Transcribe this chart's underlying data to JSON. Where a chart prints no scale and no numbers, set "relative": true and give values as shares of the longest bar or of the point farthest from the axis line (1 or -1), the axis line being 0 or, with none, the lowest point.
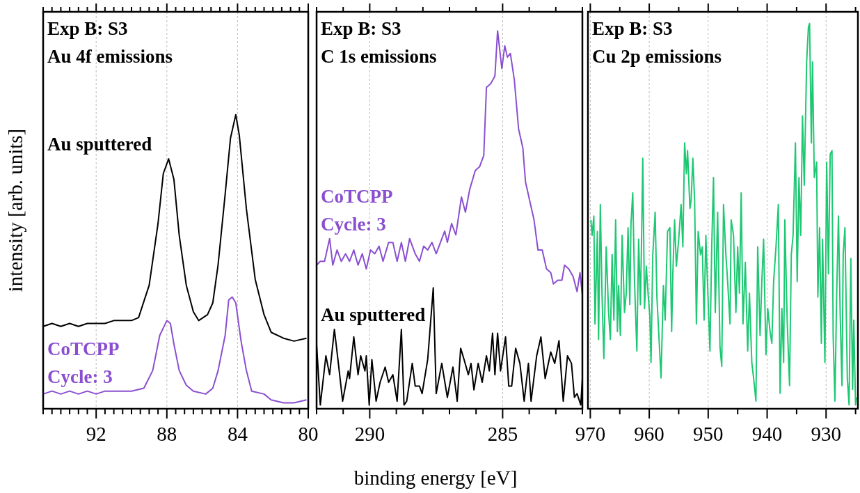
{
  "chart_data": [
    {
      "type": "line",
      "title": "Exp B: S3",
      "subtitle": "Au 4f emissions",
      "ylabel": "intensity [arb. units]",
      "relative": true,
      "grid": "x",
      "xlim": [
        95,
        80
      ],
      "xticks": [
        {
          "value": 95,
          "label": null
        },
        {
          "value": 94.5,
          "label": null
        },
        {
          "value": 94,
          "label": null
        },
        {
          "value": 93.5,
          "label": null
        },
        {
          "value": 93,
          "label": null
        },
        {
          "value": 92.5,
          "label": null
        },
        92,
        {
          "value": 91.5,
          "label": null
        },
        {
          "value": 91,
          "label": null
        },
        {
          "value": 90.5,
          "label": null
        },
        {
          "value": 90,
          "label": null
        },
        {
          "value": 89.5,
          "label": null
        },
        {
          "value": 89,
          "label": null
        },
        {
          "value": 88.5,
          "label": null
        },
        88,
        {
          "value": 87.5,
          "label": null
        },
        {
          "value": 87,
          "label": null
        },
        {
          "value": 86.5,
          "label": null
        },
        {
          "value": 86,
          "label": null
        },
        {
          "value": 85.5,
          "label": null
        },
        {
          "value": 85,
          "label": null
        },
        {
          "value": 84.5,
          "label": null
        },
        84,
        {
          "value": 83.5,
          "label": null
        },
        {
          "value": 83,
          "label": null
        },
        {
          "value": 82.5,
          "label": null
        },
        {
          "value": 82,
          "label": null
        },
        {
          "value": 81.5,
          "label": null
        },
        {
          "value": 81,
          "label": null
        },
        {
          "value": 80.5,
          "label": null
        },
        80
      ],
      "series": [
        {
          "name": "Au sputtered",
          "color": "#000000",
          "x": [
            95,
            94.5,
            94,
            93.5,
            93,
            92.5,
            92,
            91.5,
            91,
            90.5,
            90,
            89.6,
            89.0,
            88.5,
            88.2,
            87.9,
            87.6,
            87.3,
            86.9,
            86.5,
            86.2,
            85.7,
            85.4,
            85.1,
            84.7,
            84.4,
            84.1,
            83.9,
            83.5,
            83.0,
            82.5,
            82.1,
            81.4,
            80.8,
            80.1
          ],
          "values": [
            0.28,
            0.29,
            0.28,
            0.29,
            0.28,
            0.29,
            0.29,
            0.29,
            0.3,
            0.3,
            0.3,
            0.31,
            0.42,
            0.63,
            0.8,
            0.85,
            0.78,
            0.59,
            0.42,
            0.33,
            0.3,
            0.32,
            0.36,
            0.49,
            0.73,
            0.92,
            1.0,
            0.93,
            0.68,
            0.44,
            0.32,
            0.26,
            0.24,
            0.23,
            0.24
          ]
        },
        {
          "name": "CoTCPP\nCycle: 3",
          "color": "#8a4fd0",
          "x": [
            95,
            94.5,
            94,
            93.5,
            93,
            92.5,
            92,
            91.5,
            91,
            90.5,
            90,
            89.3,
            88.8,
            88.4,
            88.0,
            87.8,
            87.6,
            87.3,
            86.9,
            86.5,
            85.8,
            85.4,
            85.1,
            84.7,
            84.5,
            84.3,
            84.1,
            83.8,
            83.5,
            83.2,
            82.5,
            82.1,
            81.4,
            80.8,
            80.1
          ],
          "values": [
            0.05,
            0.06,
            0.05,
            0.06,
            0.05,
            0.06,
            0.05,
            0.06,
            0.06,
            0.06,
            0.06,
            0.07,
            0.13,
            0.25,
            0.3,
            0.29,
            0.22,
            0.13,
            0.08,
            0.06,
            0.05,
            0.07,
            0.13,
            0.25,
            0.37,
            0.38,
            0.36,
            0.23,
            0.13,
            0.06,
            0.05,
            0.03,
            0.02,
            0.02,
            0.03
          ]
        }
      ]
    },
    {
      "type": "line",
      "title": "Exp B: S3",
      "subtitle": "C 1s emissions",
      "xlabel": "binding energy [eV]",
      "relative": true,
      "grid": "x",
      "xlim": [
        292,
        282
      ],
      "xticks": [
        {
          "value": 292,
          "label": null
        },
        {
          "value": 291,
          "label": null
        },
        290,
        {
          "value": 289,
          "label": null
        },
        {
          "value": 288,
          "label": null
        },
        {
          "value": 287,
          "label": null
        },
        {
          "value": 286,
          "label": null
        },
        285,
        {
          "value": 284,
          "label": null
        },
        {
          "value": 283,
          "label": null
        },
        {
          "value": 282,
          "label": null
        }
      ],
      "series": [
        {
          "name": "CoTCPP\nCycle: 3",
          "color": "#8a4fd0",
          "x": [
            292.0,
            291.86,
            291.7,
            291.51,
            291.39,
            291.23,
            291.07,
            290.91,
            290.76,
            290.6,
            290.44,
            290.28,
            290.13,
            289.97,
            289.81,
            289.65,
            289.5,
            289.29,
            289.13,
            288.97,
            288.81,
            288.66,
            288.5,
            288.29,
            288.13,
            287.97,
            287.82,
            287.66,
            287.5,
            287.34,
            287.18,
            287.08,
            286.92,
            286.76,
            286.55,
            286.4,
            286.24,
            286.03,
            285.87,
            285.71,
            285.61,
            285.45,
            285.29,
            285.19,
            285.03,
            284.92,
            284.82,
            284.71,
            284.56,
            284.4,
            284.24,
            284.14,
            283.98,
            283.82,
            283.67,
            283.51,
            283.35,
            283.19,
            283.09,
            282.93,
            282.77,
            282.67,
            282.51,
            282.35,
            282.2,
            282.09,
            282.0
          ],
          "values": [
            0.38,
            0.39,
            0.39,
            0.45,
            0.38,
            0.42,
            0.39,
            0.41,
            0.39,
            0.42,
            0.38,
            0.41,
            0.37,
            0.42,
            0.41,
            0.43,
            0.39,
            0.44,
            0.44,
            0.39,
            0.44,
            0.39,
            0.45,
            0.41,
            0.39,
            0.43,
            0.42,
            0.44,
            0.41,
            0.44,
            0.47,
            0.44,
            0.49,
            0.46,
            0.56,
            0.52,
            0.58,
            0.63,
            0.64,
            0.67,
            0.85,
            0.86,
            0.88,
            1.0,
            0.9,
            0.96,
            0.93,
            0.94,
            0.87,
            0.74,
            0.69,
            0.6,
            0.55,
            0.5,
            0.42,
            0.42,
            0.37,
            0.36,
            0.33,
            0.34,
            0.34,
            0.38,
            0.37,
            0.35,
            0.31,
            0.36,
            0.3
          ]
        },
        {
          "name": "Au sputtered",
          "color": "#000000",
          "x": [
            292.0,
            291.86,
            291.65,
            291.51,
            291.33,
            291.18,
            291.02,
            290.81,
            290.76,
            290.6,
            290.44,
            290.34,
            290.18,
            290.13,
            290.02,
            289.92,
            289.76,
            289.61,
            289.42,
            289.29,
            289.13,
            288.97,
            288.81,
            288.71,
            288.61,
            288.4,
            288.29,
            288.13,
            288.03,
            287.82,
            287.61,
            287.5,
            287.29,
            287.08,
            286.87,
            286.71,
            286.58,
            286.45,
            286.29,
            286.19,
            286.08,
            285.92,
            285.77,
            285.61,
            285.5,
            285.38,
            285.29,
            285.19,
            285.08,
            284.89,
            284.77,
            284.66,
            284.51,
            284.35,
            284.19,
            284.03,
            283.93,
            283.72,
            283.56,
            283.4,
            283.19,
            283.04,
            282.88,
            282.72,
            282.56,
            282.41,
            282.3,
            282.2,
            282.06,
            282.0
          ],
          "values": [
            0.17,
            0.01,
            0.14,
            0.09,
            0.21,
            0.12,
            0.02,
            0.1,
            0.08,
            0.19,
            0.09,
            0.14,
            0.1,
            0.14,
            0.01,
            0.13,
            0.02,
            0.07,
            0.11,
            0.07,
            0.09,
            0.02,
            0.21,
            0.01,
            0.02,
            0.12,
            0.06,
            0.06,
            0.04,
            0.13,
            0.32,
            0.04,
            0.12,
            0.03,
            0.11,
            0.02,
            0.16,
            0.13,
            0.09,
            0.12,
            0.05,
            0.12,
            0.07,
            0.14,
            0.1,
            0.2,
            0.09,
            0.2,
            0.1,
            0.19,
            0.06,
            0.06,
            0.16,
            0.12,
            0.02,
            0.12,
            0.02,
            0.14,
            0.19,
            0.08,
            0.15,
            0.12,
            0.18,
            0.02,
            0.14,
            0.12,
            0.03,
            0.04,
            0.01,
            0.08
          ]
        }
      ]
    },
    {
      "type": "line",
      "title": "Exp B: S3",
      "subtitle": "Cu 2p emissions",
      "relative": true,
      "grid": "x",
      "xlim": [
        970.4,
        924.6
      ],
      "xticks": [
        970,
        {
          "value": 965,
          "label": null
        },
        960,
        {
          "value": 955,
          "label": null
        },
        950,
        {
          "value": 945,
          "label": null
        },
        940,
        {
          "value": 935,
          "label": null
        },
        930,
        {
          "value": 925,
          "label": null
        }
      ],
      "series": [
        {
          "color": "#1ec873",
          "x": [
            969.9,
            969.7,
            969.4,
            969.2,
            968.8,
            968.6,
            968.3,
            968.0,
            967.7,
            967.3,
            966.9,
            966.6,
            966.3,
            966.0,
            965.7,
            965.4,
            965.2,
            964.9,
            964.6,
            964.2,
            963.9,
            963.6,
            963.3,
            963.1,
            962.8,
            962.5,
            962.1,
            961.8,
            961.5,
            961.3,
            961.1,
            960.8,
            960.5,
            960.2,
            959.9,
            959.7,
            959.4,
            959.0,
            958.7,
            958.3,
            958.0,
            957.6,
            957.3,
            956.9,
            956.5,
            956.2,
            956.0,
            955.7,
            955.4,
            955.0,
            954.6,
            954.3,
            954.0,
            953.7,
            953.5,
            953.1,
            952.9,
            952.6,
            952.3,
            952.0,
            951.7,
            951.3,
            951.0,
            950.7,
            950.4,
            950.1,
            949.7,
            949.4,
            949.1,
            948.8,
            948.4,
            948.0,
            947.7,
            947.4,
            947.0,
            946.7,
            946.3,
            946.1,
            945.7,
            945.3,
            945.0,
            944.7,
            944.4,
            944.1,
            943.7,
            943.3,
            943.0,
            942.6,
            942.3,
            941.9,
            941.6,
            941.2,
            940.9,
            940.6,
            940.2,
            939.9,
            939.5,
            939.2,
            938.9,
            938.5,
            938.1,
            937.8,
            937.5,
            937.2,
            937.0,
            936.6,
            936.2,
            935.9,
            935.6,
            935.2,
            934.9,
            934.6,
            934.3,
            934.0,
            933.7,
            933.3,
            933.0,
            932.8,
            932.5,
            932.3,
            932.0,
            931.6,
            931.4,
            931.1,
            930.8,
            930.6,
            930.2,
            929.9,
            929.6,
            929.3,
            929.0,
            928.8,
            928.5,
            928.2,
            927.9,
            927.6,
            927.3,
            927.1,
            926.8,
            926.4,
            926.1,
            925.8,
            925.5,
            925.3,
            925.0,
            924.8
          ],
          "values": [
            0.49,
            0.45,
            0.5,
            0.22,
            0.46,
            0.18,
            0.53,
            0.29,
            0.13,
            0.42,
            0.25,
            0.18,
            0.4,
            0.23,
            0.49,
            0.2,
            0.32,
            0.19,
            0.45,
            0.25,
            0.3,
            0.47,
            0.27,
            0.48,
            0.56,
            0.33,
            0.15,
            0.44,
            0.27,
            0.44,
            0.65,
            0.26,
            0.37,
            0.3,
            0.24,
            0.12,
            0.4,
            0.51,
            0.29,
            0.17,
            0.08,
            0.32,
            0.23,
            0.46,
            0.47,
            0.2,
            0.35,
            0.49,
            0.37,
            0.44,
            0.53,
            0.42,
            0.69,
            0.61,
            0.67,
            0.52,
            0.54,
            0.65,
            0.54,
            0.22,
            0.46,
            0.4,
            0.42,
            0.23,
            0.45,
            0.32,
            0.15,
            0.42,
            0.6,
            0.25,
            0.51,
            0.16,
            0.11,
            0.53,
            0.4,
            0.33,
            0.22,
            0.49,
            0.45,
            0.25,
            0.42,
            0.3,
            0.56,
            0.22,
            0.38,
            0.15,
            0.3,
            0.12,
            0.08,
            0.02,
            0.42,
            0.19,
            0.33,
            0.44,
            0.14,
            0.26,
            0.2,
            0.17,
            0.33,
            0.42,
            0.53,
            0.04,
            0.26,
            0.12,
            0.49,
            0.23,
            0.06,
            0.4,
            0.45,
            0.69,
            0.33,
            0.6,
            0.45,
            0.76,
            0.58,
            0.9,
            0.99,
            1.0,
            0.69,
            0.9,
            0.6,
            0.64,
            0.29,
            0.47,
            0.17,
            0.44,
            0.12,
            0.64,
            0.35,
            0.66,
            0.67,
            0.19,
            0.02,
            0.3,
            0.5,
            0.24,
            0.06,
            0.4,
            0.47,
            0.08,
            0.01,
            0.39,
            0.05,
            0.23,
            0.01,
            0.03
          ]
        }
      ]
    }
  ]
}
